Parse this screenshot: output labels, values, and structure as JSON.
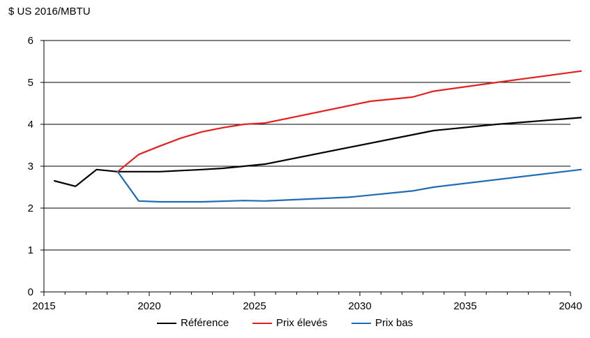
{
  "chart_data": {
    "type": "line",
    "title": "",
    "ylabel": "$ US 2016/MBTU",
    "xlabel": "",
    "xlim": [
      2015,
      2040
    ],
    "ylim": [
      0,
      6
    ],
    "x_ticks": [
      2015,
      2020,
      2025,
      2030,
      2035,
      2040
    ],
    "y_ticks": [
      0,
      1,
      2,
      3,
      4,
      5,
      6
    ],
    "grid": "horizontal",
    "legend_position": "bottom",
    "series": [
      {
        "name": "Référence",
        "color": "#000000",
        "points": [
          [
            2015.5,
            2.65
          ],
          [
            2016.5,
            2.52
          ],
          [
            2017.5,
            2.92
          ],
          [
            2018.5,
            2.87
          ],
          [
            2019.5,
            2.87
          ],
          [
            2020.5,
            2.87
          ],
          [
            2022.5,
            2.92
          ],
          [
            2023.5,
            2.95
          ],
          [
            2024.5,
            3.0
          ],
          [
            2025.5,
            3.05
          ],
          [
            2033.5,
            3.85
          ],
          [
            2036.5,
            4.0
          ],
          [
            2040.5,
            4.16
          ]
        ]
      },
      {
        "name": "Prix élevés",
        "color": "#e4201f",
        "points": [
          [
            2018.5,
            2.87
          ],
          [
            2019.5,
            3.28
          ],
          [
            2020.5,
            3.48
          ],
          [
            2021.5,
            3.67
          ],
          [
            2022.5,
            3.82
          ],
          [
            2023.5,
            3.92
          ],
          [
            2024.5,
            4.0
          ],
          [
            2025.5,
            4.03
          ],
          [
            2030.5,
            4.55
          ],
          [
            2032.5,
            4.65
          ],
          [
            2033.5,
            4.79
          ],
          [
            2036.5,
            5.0
          ],
          [
            2040.5,
            5.27
          ]
        ]
      },
      {
        "name": "Prix bas",
        "color": "#1f6bb5",
        "points": [
          [
            2018.5,
            2.87
          ],
          [
            2019.5,
            2.17
          ],
          [
            2020.5,
            2.15
          ],
          [
            2022.5,
            2.15
          ],
          [
            2024.5,
            2.18
          ],
          [
            2025.5,
            2.17
          ],
          [
            2029.5,
            2.26
          ],
          [
            2032.5,
            2.41
          ],
          [
            2033.5,
            2.5
          ],
          [
            2040.5,
            2.92
          ]
        ]
      }
    ]
  }
}
